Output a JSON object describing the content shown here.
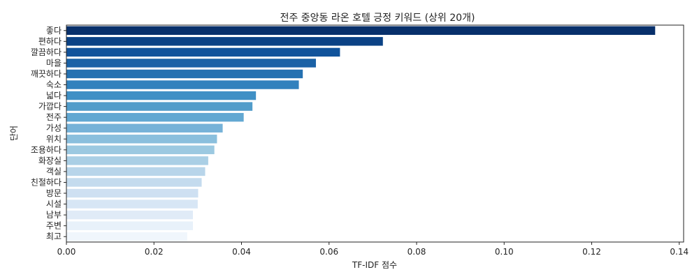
{
  "chart_data": {
    "type": "bar",
    "orientation": "horizontal",
    "title": "전주 중앙동 라온 호텔 긍정 키워드 (상위 20개)",
    "xlabel": "TF-IDF 점수",
    "ylabel": "단어",
    "xlim": [
      0,
      0.141
    ],
    "xticks": [
      0.0,
      0.02,
      0.04,
      0.06,
      0.08,
      0.1,
      0.12,
      0.14
    ],
    "xtick_labels": [
      "0.00",
      "0.02",
      "0.04",
      "0.06",
      "0.08",
      "0.10",
      "0.12",
      "0.14"
    ],
    "categories": [
      "좋다",
      "편하다",
      "깔끔하다",
      "마을",
      "깨끗하다",
      "숙소",
      "넓다",
      "가깝다",
      "전주",
      "가성",
      "위치",
      "조용하다",
      "화장실",
      "객실",
      "친절하다",
      "방문",
      "시설",
      "남부",
      "주변",
      "최고"
    ],
    "values": [
      0.1345,
      0.0723,
      0.0625,
      0.057,
      0.054,
      0.0531,
      0.0433,
      0.0425,
      0.0405,
      0.0357,
      0.0344,
      0.0338,
      0.0324,
      0.0317,
      0.0309,
      0.0301,
      0.03,
      0.0289,
      0.0289,
      0.0276
    ],
    "colors": [
      "#08306b",
      "#0b4285",
      "#11539b",
      "#1b62a6",
      "#2571b1",
      "#3181bd",
      "#4090c5",
      "#519cca",
      "#62a8d2",
      "#76b2d8",
      "#8abfdd",
      "#9cc9e1",
      "#aacfe5",
      "#b8d5ea",
      "#c4dbee",
      "#cee0f2",
      "#d7e6f5",
      "#e0ebf7",
      "#e8f1fa",
      "#f0f6fc"
    ],
    "grid": false,
    "legend": "none"
  }
}
